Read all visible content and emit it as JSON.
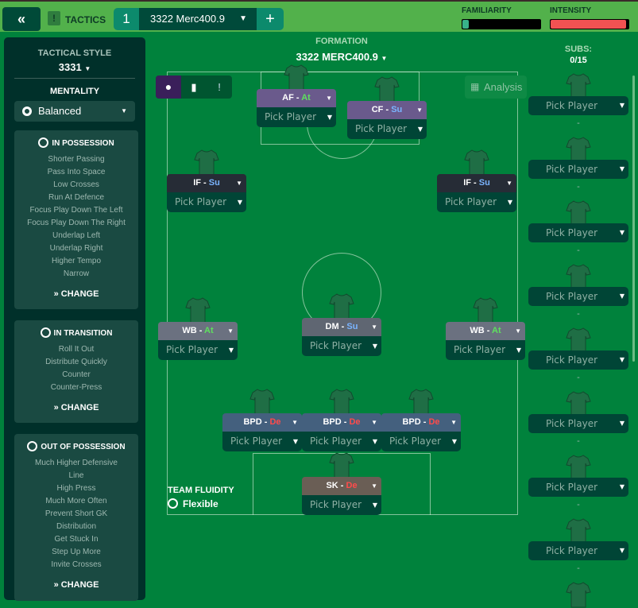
{
  "topbar": {
    "back_icon": "double-chevron-left",
    "tactics_label": "TACTICS",
    "tactic_number": "1",
    "tactic_name": "3322 Merc400.9",
    "add_label": "+",
    "familiarity_label": "FAMILIARITY",
    "familiarity_level": 0.08,
    "familiarity_color": "#38b28a",
    "intensity_label": "INTENSITY",
    "intensity_level": 0.97,
    "intensity_color": "#f25252"
  },
  "left": {
    "tactical_style_label": "TACTICAL STYLE",
    "tactical_style_value": "3331",
    "mentality_label": "MENTALITY",
    "mentality_value": "Balanced",
    "sections": [
      {
        "title": "IN POSSESSION",
        "items": [
          "Shorter Passing",
          "Pass Into Space",
          "Low Crosses",
          "Run At Defence",
          "Focus Play Down The Left",
          "Focus Play Down The Right",
          "Underlap Left",
          "Underlap Right",
          "Higher Tempo",
          "Narrow"
        ],
        "change": "CHANGE"
      },
      {
        "title": "IN TRANSITION",
        "items": [
          "Roll It Out",
          "Distribute Quickly",
          "Counter",
          "Counter-Press"
        ],
        "change": "CHANGE"
      },
      {
        "title": "OUT OF POSSESSION",
        "items": [
          "Much Higher Defensive",
          "Line",
          "High Press",
          "Much More Often",
          "Prevent Short GK",
          "Distribution",
          "Get Stuck In",
          "Step Up More",
          "Invite Crosses"
        ],
        "change": "CHANGE"
      }
    ]
  },
  "formation": {
    "label": "FORMATION",
    "value": "3322 MERC400.9",
    "analysis_label": "Analysis"
  },
  "subs": {
    "label": "SUBS:",
    "count": "0/15",
    "slots": [
      "Pick Player",
      "Pick Player",
      "Pick Player",
      "Pick Player",
      "Pick Player",
      "Pick Player",
      "Pick Player",
      "Pick Player"
    ],
    "empty": "-"
  },
  "fluidity": {
    "label": "TEAM FLUIDITY",
    "value": "Flexible"
  },
  "duty_colors": {
    "At": "#5ee05e",
    "Su": "#7ab4ff",
    "De": "#ff4b4b"
  },
  "players": [
    {
      "role": "AF",
      "duty": "At",
      "pick": "Pick Player",
      "color": "#6a5a8c"
    },
    {
      "role": "CF",
      "duty": "Su",
      "pick": "Pick Player",
      "color": "#6a5a8c"
    },
    {
      "role": "IF",
      "duty": "Su",
      "pick": "Pick Player",
      "color": "#262c36"
    },
    {
      "role": "IF",
      "duty": "Su",
      "pick": "Pick Player",
      "color": "#262c36"
    },
    {
      "role": "WB",
      "duty": "At",
      "pick": "Pick Player",
      "color": "#6b7180"
    },
    {
      "role": "DM",
      "duty": "Su",
      "pick": "Pick Player",
      "color": "#5f6672"
    },
    {
      "role": "WB",
      "duty": "At",
      "pick": "Pick Player",
      "color": "#6b7180"
    },
    {
      "role": "BPD",
      "duty": "De",
      "pick": "Pick Player",
      "color": "#44607e"
    },
    {
      "role": "BPD",
      "duty": "De",
      "pick": "Pick Player",
      "color": "#44607e"
    },
    {
      "role": "BPD",
      "duty": "De",
      "pick": "Pick Player",
      "color": "#44607e"
    },
    {
      "role": "SK",
      "duty": "De",
      "pick": "Pick Player",
      "color": "#6a5e55"
    }
  ]
}
